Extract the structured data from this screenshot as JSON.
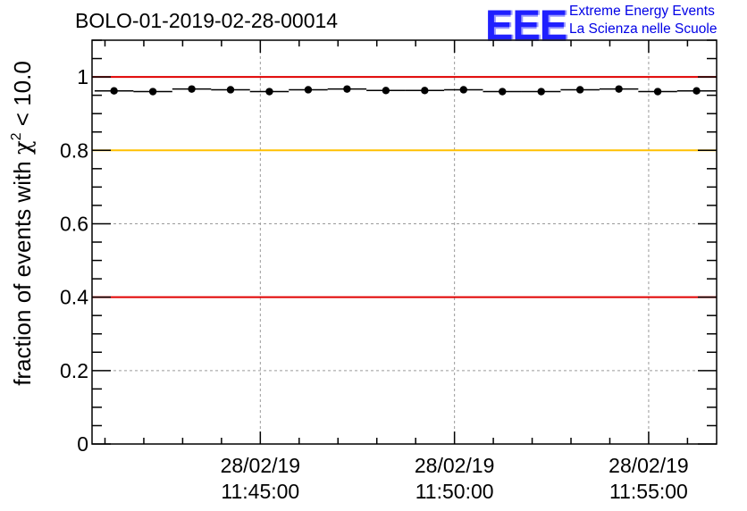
{
  "title": "BOLO-01-2019-02-28-00014",
  "logo": {
    "mark": "EEE",
    "line1": "Extreme Energy Events",
    "line2": "La Scienza nelle Scuole"
  },
  "chart_data": {
    "type": "scatter",
    "title": "BOLO-01-2019-02-28-00014",
    "ylabel_prefix": "fraction of events with ",
    "ylabel_symbol": "χ",
    "ylabel_exp": "2",
    "ylabel_suffix": " < 10.0",
    "ylim": [
      0,
      1.1
    ],
    "yticks": [
      0,
      0.2,
      0.4,
      0.6,
      0.8,
      1
    ],
    "ytick_labels": [
      "0",
      "0.2",
      "0.4",
      "0.6",
      "0.8",
      "1"
    ],
    "xlim": [
      "11:40:40",
      "11:56:45"
    ],
    "xticks": [
      {
        "time": "11:45:00",
        "date": "28/02/19",
        "label": "11:45:00"
      },
      {
        "time": "11:50:00",
        "date": "28/02/19",
        "label": "11:50:00"
      },
      {
        "time": "11:55:00",
        "date": "28/02/19",
        "label": "11:55:00"
      }
    ],
    "grid": true,
    "reference_lines": [
      {
        "y": 1.0,
        "color": "#e00000"
      },
      {
        "y": 0.8,
        "color": "#ffc000"
      },
      {
        "y": 0.4,
        "color": "#e00000"
      }
    ],
    "points": [
      {
        "x": "11:41:14",
        "y": 0.962
      },
      {
        "x": "11:42:14",
        "y": 0.96
      },
      {
        "x": "11:43:14",
        "y": 0.967
      },
      {
        "x": "11:44:14",
        "y": 0.965
      },
      {
        "x": "11:45:14",
        "y": 0.96
      },
      {
        "x": "11:46:14",
        "y": 0.965
      },
      {
        "x": "11:47:14",
        "y": 0.967
      },
      {
        "x": "11:48:14",
        "y": 0.963
      },
      {
        "x": "11:49:14",
        "y": 0.963
      },
      {
        "x": "11:50:14",
        "y": 0.965
      },
      {
        "x": "11:51:14",
        "y": 0.96
      },
      {
        "x": "11:52:14",
        "y": 0.96
      },
      {
        "x": "11:53:14",
        "y": 0.965
      },
      {
        "x": "11:54:14",
        "y": 0.967
      },
      {
        "x": "11:55:14",
        "y": 0.96
      },
      {
        "x": "11:56:14",
        "y": 0.962
      }
    ],
    "colors": {
      "points": "#000000",
      "grid": "#9a9a9a",
      "axis": "#000000"
    }
  }
}
